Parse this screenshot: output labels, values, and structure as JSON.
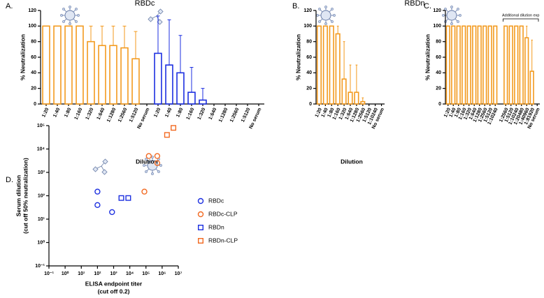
{
  "chart_data": [
    {
      "type": "bar",
      "label": "A.",
      "title": "RBDc",
      "ylabel": "% Neutralization",
      "xlabel": "Dilution",
      "ylim": [
        0,
        120
      ],
      "yticks": [
        0,
        20,
        40,
        60,
        80,
        100,
        120
      ],
      "categories": [
        "1:20",
        "1:40",
        "1:80",
        "1:160",
        "1:320",
        "1:640",
        "1:1280",
        "1:2560",
        "1:5120",
        "No serum",
        "1:20",
        "1:40",
        "1:80",
        "1:160",
        "1:320",
        "1:640",
        "1:1280",
        "1:2560",
        "1:5120",
        "No serum"
      ],
      "series": [
        {
          "color": "#f39a1e",
          "values": [
            100,
            100,
            100,
            100,
            80,
            75,
            75,
            72,
            58,
            0,
            null,
            null,
            null,
            null,
            null,
            null,
            null,
            null,
            null,
            null
          ],
          "errors": [
            0,
            0,
            0,
            0,
            20,
            25,
            25,
            28,
            35,
            0,
            null,
            null,
            null,
            null,
            null,
            null,
            null,
            null,
            null,
            null
          ]
        },
        {
          "color": "#1c2fe0",
          "values": [
            null,
            null,
            null,
            null,
            null,
            null,
            null,
            null,
            null,
            null,
            65,
            50,
            40,
            15,
            5,
            0,
            0,
            0,
            0,
            0
          ],
          "errors": [
            null,
            null,
            null,
            null,
            null,
            null,
            null,
            null,
            null,
            null,
            48,
            58,
            48,
            32,
            15,
            0,
            0,
            0,
            0,
            0
          ]
        }
      ]
    },
    {
      "type": "bar",
      "label": "B.",
      "title": "RBDn",
      "ylabel": "% Neutralization",
      "xlabel": "Dilution",
      "ylim": [
        0,
        120
      ],
      "yticks": [
        0,
        20,
        40,
        60,
        80,
        100,
        120
      ],
      "categories": [
        "1:20",
        "1:40",
        "1:80",
        "1:160",
        "1:320",
        "1:640",
        "1:1280",
        "1:2560",
        "1:5120",
        "1:10240",
        "No serum"
      ],
      "series": [
        {
          "color": "#f39a1e",
          "values": [
            100,
            100,
            100,
            90,
            32,
            15,
            15,
            3,
            0,
            0,
            0
          ],
          "errors": [
            0,
            0,
            0,
            10,
            48,
            35,
            35,
            5,
            0,
            0,
            0
          ]
        }
      ]
    },
    {
      "type": "bar",
      "label": "C.",
      "ylabel": "% Neutralization",
      "annotation": "Additional dilution exp",
      "ylim": [
        0,
        120
      ],
      "yticks": [
        0,
        20,
        40,
        60,
        80,
        100,
        120
      ],
      "categories": [
        "1:20",
        "1:40",
        "1:80",
        "1:160",
        "1:320",
        "1:640",
        "1:1280",
        "1:2560",
        "1:5120",
        "1:10240",
        null,
        "1:2560",
        "1:5120",
        "1:10240",
        "1:20480",
        "1:40960",
        "1:81920",
        "No serum"
      ],
      "series": [
        {
          "color": "#f39a1e",
          "values": [
            100,
            100,
            100,
            100,
            100,
            100,
            100,
            100,
            100,
            100,
            null,
            100,
            100,
            100,
            100,
            85,
            42,
            0
          ],
          "errors": [
            0,
            0,
            0,
            0,
            0,
            0,
            0,
            0,
            0,
            0,
            null,
            0,
            0,
            0,
            0,
            15,
            40,
            0
          ]
        }
      ]
    },
    {
      "type": "scatter",
      "label": "D.",
      "xlabel": "ELISA endpoint titer",
      "xlabel2": "(cut off 0.2)",
      "ylabel": "Serum dilution",
      "ylabel2": "(cut off 50% neutralization)",
      "log_scale": true,
      "xlim": [
        0.1,
        10000000
      ],
      "ylim": [
        0.1,
        100000
      ],
      "xticks": [
        {
          "value": 0.1,
          "label": "10⁻¹"
        },
        {
          "value": 1,
          "label": "10⁰"
        },
        {
          "value": 10,
          "label": "10¹"
        },
        {
          "value": 100,
          "label": "10²"
        },
        {
          "value": 1000,
          "label": "10³"
        },
        {
          "value": 10000,
          "label": "10⁴"
        },
        {
          "value": 100000,
          "label": "10⁵"
        },
        {
          "value": 1000000,
          "label": "10⁶"
        },
        {
          "value": 10000000,
          "label": "10⁷"
        }
      ],
      "yticks": [
        {
          "value": 0.1,
          "label": "10⁻¹"
        },
        {
          "value": 1,
          "label": "10⁰"
        },
        {
          "value": 10,
          "label": "10¹"
        },
        {
          "value": 100,
          "label": "10²"
        },
        {
          "value": 1000,
          "label": "10³"
        },
        {
          "value": 10000,
          "label": "10⁴"
        },
        {
          "value": 100000,
          "label": "10⁵"
        }
      ],
      "series": [
        {
          "name": "RBDc",
          "color": "#1c2fe0",
          "marker": "circle",
          "x": [
            100,
            100,
            800
          ],
          "y": [
            150,
            40,
            20
          ]
        },
        {
          "name": "RBDc-CLP",
          "color": "#f26a22",
          "marker": "circle",
          "x": [
            80000,
            150000,
            500000,
            500000
          ],
          "y": [
            150,
            5000,
            5000,
            2500
          ]
        },
        {
          "name": "RBDn",
          "color": "#1c2fe0",
          "marker": "square",
          "x": [
            3000,
            8000
          ],
          "y": [
            80,
            80
          ]
        },
        {
          "name": "RBDn-CLP",
          "color": "#f26a22",
          "marker": "square",
          "x": [
            2000000,
            5000000
          ],
          "y": [
            40000,
            80000
          ]
        }
      ]
    }
  ]
}
